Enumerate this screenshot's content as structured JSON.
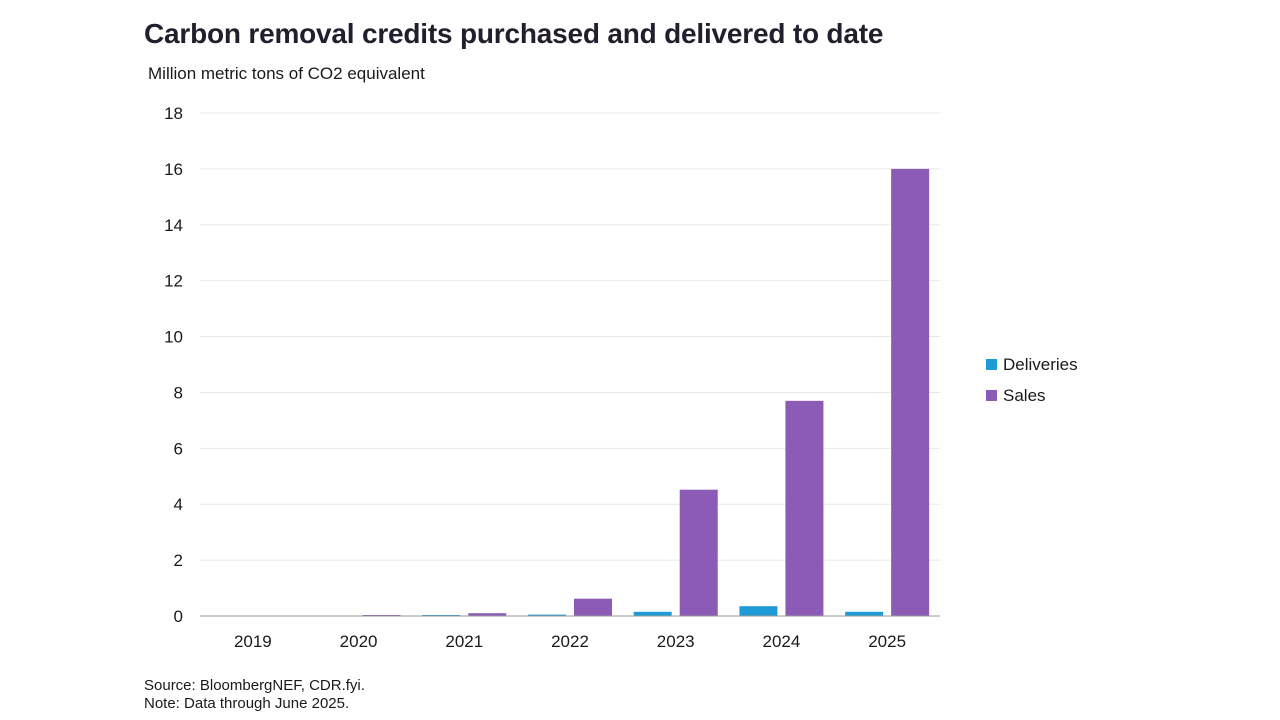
{
  "title": "Carbon removal credits purchased and delivered to date",
  "subtitle": "Million metric tons of CO2 equivalent",
  "source": "Source: BloombergNEF, CDR.fyi.",
  "note": "Note: Data through June 2025.",
  "colors": {
    "deliveries": "#1E9BD7",
    "sales": "#8B5BB5",
    "grid": "#e8e8e8",
    "axis": "#999999"
  },
  "chart_data": {
    "type": "bar",
    "categories": [
      "2019",
      "2020",
      "2021",
      "2022",
      "2023",
      "2024",
      "2025"
    ],
    "series": [
      {
        "name": "Deliveries",
        "values": [
          0,
          0,
          0.01,
          0.05,
          0.15,
          0.35,
          0.15
        ]
      },
      {
        "name": "Sales",
        "values": [
          0,
          0.02,
          0.1,
          0.62,
          4.52,
          7.7,
          16.0
        ]
      }
    ],
    "ylim": [
      0,
      18
    ],
    "yticks": [
      "0",
      "2",
      "4",
      "6",
      "8",
      "10",
      "12",
      "14",
      "16",
      "18"
    ],
    "grid": true,
    "legend_position": "right"
  }
}
